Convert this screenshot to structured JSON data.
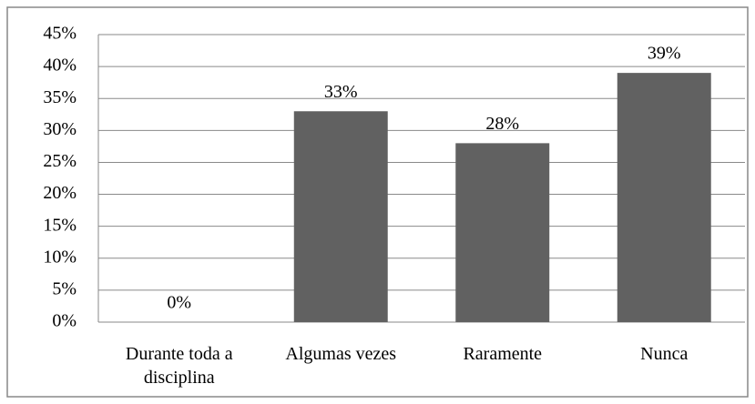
{
  "chart_data": {
    "type": "bar",
    "categories": [
      "Durante toda a disciplina",
      "Algumas vezes",
      "Raramente",
      "Nunca"
    ],
    "values": [
      0,
      33,
      28,
      39
    ],
    "value_labels": [
      "0%",
      "33%",
      "28%",
      "39%"
    ],
    "color": "#616161",
    "ylim": [
      0,
      45
    ],
    "yticks": [
      {
        "value": 0,
        "label": "0%"
      },
      {
        "value": 5,
        "label": "5%"
      },
      {
        "value": 10,
        "label": "10%"
      },
      {
        "value": 15,
        "label": "15%"
      },
      {
        "value": 20,
        "label": "20%"
      },
      {
        "value": 25,
        "label": "25%"
      },
      {
        "value": 30,
        "label": "30%"
      },
      {
        "value": 35,
        "label": "35%"
      },
      {
        "value": 40,
        "label": "40%"
      },
      {
        "value": 45,
        "label": "45%"
      }
    ],
    "grid": true
  }
}
